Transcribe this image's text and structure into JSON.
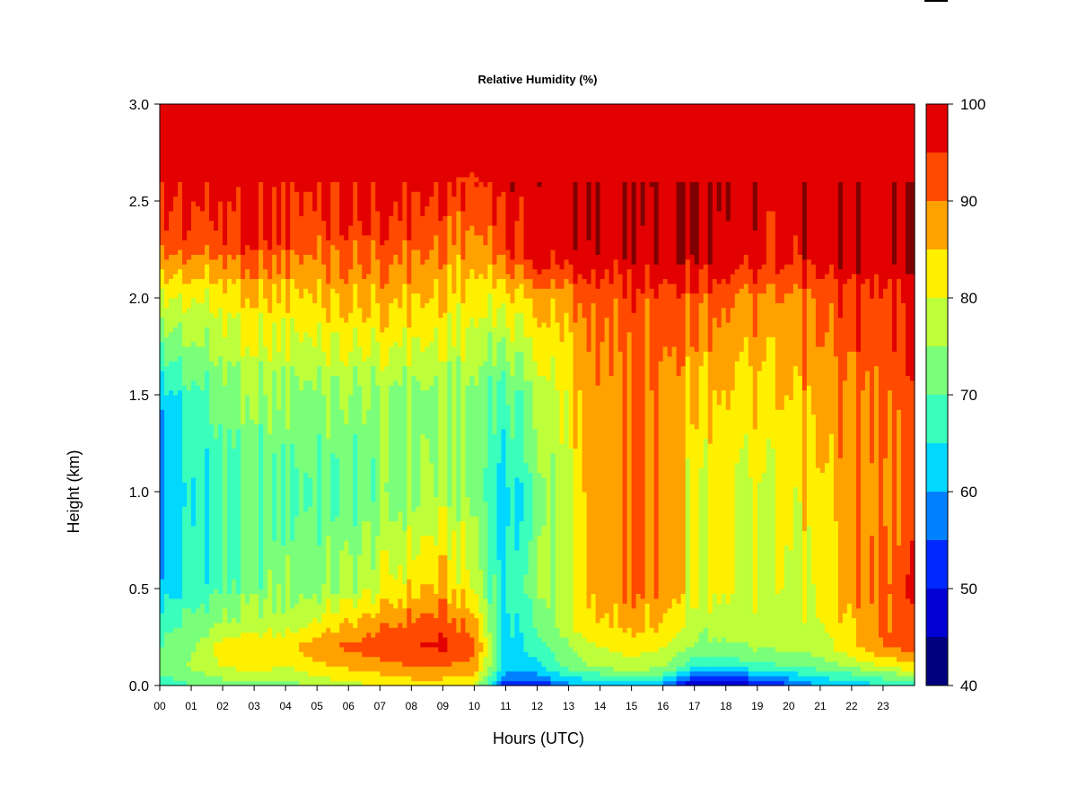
{
  "chart_data": {
    "type": "heatmap",
    "title": "Relative Humidity (%)",
    "xlabel": "Hours (UTC)",
    "ylabel": "Height (km)",
    "xlim": [
      0,
      24
    ],
    "ylim": [
      0.0,
      3.0
    ],
    "x_ticks": [
      "00",
      "01",
      "02",
      "03",
      "04",
      "05",
      "06",
      "07",
      "08",
      "09",
      "10",
      "11",
      "12",
      "13",
      "14",
      "15",
      "16",
      "17",
      "18",
      "19",
      "20",
      "21",
      "22",
      "23"
    ],
    "y_ticks": [
      "0.0",
      "0.5",
      "1.0",
      "1.5",
      "2.0",
      "2.5",
      "3.0"
    ],
    "colorbar": {
      "levels": [
        40,
        45,
        50,
        55,
        60,
        65,
        70,
        75,
        80,
        85,
        90,
        95,
        100
      ],
      "labels": [
        "40",
        "50",
        "60",
        "70",
        "80",
        "90",
        "100"
      ],
      "colors": [
        "#00007f",
        "#0000d4",
        "#0028ff",
        "#0080ff",
        "#00d8ff",
        "#3affbc",
        "#7aff7a",
        "#bcff3a",
        "#fff000",
        "#ffa200",
        "#ff4a00",
        "#e30000",
        "#7f0000"
      ]
    },
    "profiles": [
      {
        "hour": 0,
        "heights": [
          0,
          0.1,
          0.3,
          0.5,
          1.0,
          1.5,
          2.0,
          2.3,
          3.0
        ],
        "rh": [
          66,
          72,
          68,
          62,
          58,
          62,
          80,
          93,
          100
        ]
      },
      {
        "hour": 1,
        "heights": [
          0,
          0.1,
          0.3,
          0.5,
          1.0,
          1.5,
          2.0,
          2.3,
          3.0
        ],
        "rh": [
          70,
          76,
          72,
          66,
          64,
          68,
          80,
          93,
          100
        ]
      },
      {
        "hour": 2,
        "heights": [
          0,
          0.1,
          0.2,
          0.3,
          0.5,
          1.0,
          1.5,
          2.0,
          2.3,
          3.0
        ],
        "rh": [
          72,
          80,
          83,
          76,
          70,
          68,
          72,
          82,
          94,
          100
        ]
      },
      {
        "hour": 3,
        "heights": [
          0,
          0.1,
          0.2,
          0.3,
          0.5,
          1.0,
          1.5,
          2.0,
          2.3,
          3.0
        ],
        "rh": [
          74,
          82,
          85,
          78,
          72,
          70,
          74,
          84,
          95,
          100
        ]
      },
      {
        "hour": 4,
        "heights": [
          0,
          0.1,
          0.2,
          0.3,
          0.5,
          1.0,
          1.5,
          2.0,
          2.3,
          3.0
        ],
        "rh": [
          72,
          80,
          84,
          78,
          74,
          70,
          74,
          84,
          94,
          100
        ]
      },
      {
        "hour": 5,
        "heights": [
          0,
          0.1,
          0.2,
          0.3,
          0.5,
          1.0,
          1.5,
          2.0,
          2.4,
          3.0
        ],
        "rh": [
          76,
          84,
          88,
          82,
          74,
          70,
          74,
          85,
          94,
          100
        ]
      },
      {
        "hour": 6,
        "heights": [
          0,
          0.1,
          0.2,
          0.3,
          0.5,
          1.0,
          1.5,
          2.0,
          2.4,
          3.0
        ],
        "rh": [
          78,
          86,
          91,
          86,
          76,
          70,
          74,
          86,
          95,
          100
        ]
      },
      {
        "hour": 7,
        "heights": [
          0,
          0.1,
          0.2,
          0.3,
          0.5,
          1.0,
          1.5,
          2.0,
          2.4,
          3.0
        ],
        "rh": [
          80,
          88,
          93,
          89,
          80,
          72,
          74,
          86,
          95,
          100
        ]
      },
      {
        "hour": 8,
        "heights": [
          0,
          0.1,
          0.2,
          0.3,
          0.5,
          1.0,
          1.5,
          2.0,
          2.4,
          3.0
        ],
        "rh": [
          82,
          90,
          95,
          92,
          84,
          74,
          74,
          86,
          95,
          100
        ]
      },
      {
        "hour": 9,
        "heights": [
          0,
          0.1,
          0.2,
          0.3,
          0.5,
          1.0,
          1.5,
          2.0,
          2.5,
          3.0
        ],
        "rh": [
          82,
          90,
          96,
          93,
          86,
          76,
          74,
          84,
          94,
          100
        ]
      },
      {
        "hour": 10,
        "heights": [
          0,
          0.1,
          0.2,
          0.3,
          0.5,
          1.0,
          1.5,
          2.0,
          2.5,
          3.0
        ],
        "rh": [
          80,
          88,
          92,
          88,
          80,
          74,
          74,
          82,
          93,
          100
        ]
      },
      {
        "hour": 11,
        "heights": [
          0,
          0.05,
          0.1,
          0.3,
          0.5,
          1.0,
          1.5,
          2.0,
          2.3,
          3.0
        ],
        "rh": [
          50,
          58,
          62,
          63,
          63,
          62,
          68,
          82,
          95,
          100
        ]
      },
      {
        "hour": 12,
        "heights": [
          0,
          0.05,
          0.1,
          0.3,
          0.5,
          1.0,
          1.5,
          2.0,
          2.2,
          3.0
        ],
        "rh": [
          50,
          58,
          64,
          70,
          74,
          72,
          76,
          86,
          97,
          100
        ]
      },
      {
        "hour": 13,
        "heights": [
          0,
          0.05,
          0.1,
          0.3,
          0.5,
          1.0,
          1.5,
          2.0,
          2.2,
          3.0
        ],
        "rh": [
          58,
          66,
          72,
          78,
          80,
          80,
          82,
          88,
          97,
          100
        ]
      },
      {
        "hour": 14,
        "heights": [
          0,
          0.05,
          0.1,
          0.3,
          0.5,
          1.0,
          1.5,
          2.0,
          2.2,
          3.0
        ],
        "rh": [
          60,
          68,
          76,
          84,
          88,
          88,
          88,
          92,
          98,
          100
        ]
      },
      {
        "hour": 15,
        "heights": [
          0,
          0.05,
          0.1,
          0.3,
          0.5,
          1.0,
          1.5,
          2.0,
          2.2,
          3.0
        ],
        "rh": [
          60,
          70,
          78,
          86,
          90,
          90,
          90,
          93,
          98,
          100
        ]
      },
      {
        "hour": 16,
        "heights": [
          0,
          0.05,
          0.1,
          0.3,
          0.5,
          1.0,
          1.5,
          2.0,
          2.2,
          3.0
        ],
        "rh": [
          58,
          68,
          76,
          84,
          88,
          88,
          88,
          92,
          98,
          100
        ]
      },
      {
        "hour": 17,
        "heights": [
          0,
          0.05,
          0.1,
          0.2,
          0.5,
          1.0,
          1.5,
          2.0,
          2.2,
          3.0
        ],
        "rh": [
          44,
          56,
          66,
          74,
          80,
          80,
          84,
          92,
          98,
          100
        ]
      },
      {
        "hour": 18,
        "heights": [
          0,
          0.05,
          0.1,
          0.2,
          0.5,
          1.0,
          1.5,
          2.0,
          2.2,
          3.0
        ],
        "rh": [
          46,
          56,
          66,
          74,
          80,
          80,
          84,
          90,
          98,
          100
        ]
      },
      {
        "hour": 19,
        "heights": [
          0,
          0.05,
          0.1,
          0.2,
          0.5,
          1.0,
          1.5,
          2.0,
          2.2,
          3.0
        ],
        "rh": [
          48,
          58,
          68,
          76,
          80,
          80,
          84,
          90,
          97,
          100
        ]
      },
      {
        "hour": 20,
        "heights": [
          0,
          0.05,
          0.1,
          0.2,
          0.5,
          1.0,
          1.5,
          2.0,
          2.2,
          3.0
        ],
        "rh": [
          54,
          62,
          70,
          76,
          80,
          82,
          86,
          90,
          97,
          100
        ]
      },
      {
        "hour": 21,
        "heights": [
          0,
          0.05,
          0.1,
          0.2,
          0.5,
          1.0,
          1.5,
          2.0,
          2.2,
          3.0
        ],
        "rh": [
          60,
          66,
          72,
          78,
          82,
          84,
          88,
          92,
          98,
          100
        ]
      },
      {
        "hour": 22,
        "heights": [
          0,
          0.05,
          0.1,
          0.2,
          0.5,
          1.0,
          1.5,
          2.0,
          2.2,
          3.0
        ],
        "rh": [
          62,
          68,
          76,
          84,
          88,
          88,
          90,
          94,
          99,
          100
        ]
      },
      {
        "hour": 23,
        "heights": [
          0,
          0.05,
          0.1,
          0.2,
          0.5,
          1.0,
          1.5,
          2.0,
          2.2,
          3.0
        ],
        "rh": [
          64,
          72,
          80,
          90,
          92,
          90,
          92,
          95,
          99,
          100
        ]
      },
      {
        "hour": 24,
        "heights": [
          0,
          0.05,
          0.1,
          0.2,
          0.5,
          1.0,
          1.5,
          2.0,
          2.2,
          3.0
        ],
        "rh": [
          66,
          74,
          84,
          92,
          93,
          92,
          92,
          95,
          99,
          100
        ]
      }
    ]
  }
}
